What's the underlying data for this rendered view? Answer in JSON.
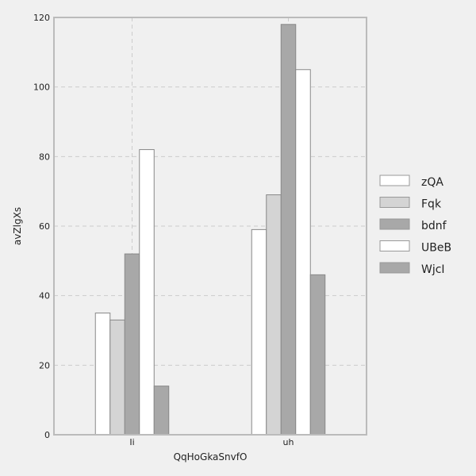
{
  "chart_data": {
    "type": "bar",
    "title": "",
    "xlabel": "QqHoGkaSnvfO",
    "ylabel": "avZlgXs",
    "categories": [
      "Ii",
      "uh"
    ],
    "yticks": [
      "0",
      "20",
      "40",
      "60",
      "80",
      "100",
      "120"
    ],
    "ylim": [
      0,
      120
    ],
    "grid": true,
    "legend_position": "right",
    "series": [
      {
        "name": "zQA",
        "values": [
          35,
          59
        ],
        "color": "#ffffff"
      },
      {
        "name": "Fqk",
        "values": [
          33,
          69
        ],
        "color": "#d4d4d4"
      },
      {
        "name": "bdnf",
        "values": [
          52,
          118
        ],
        "color": "#a8a8a8"
      },
      {
        "name": "UBeB",
        "values": [
          82,
          105
        ],
        "color": "#ffffff"
      },
      {
        "name": "WjcI",
        "values": [
          14,
          46
        ],
        "color": "#a8a8a8"
      }
    ]
  }
}
